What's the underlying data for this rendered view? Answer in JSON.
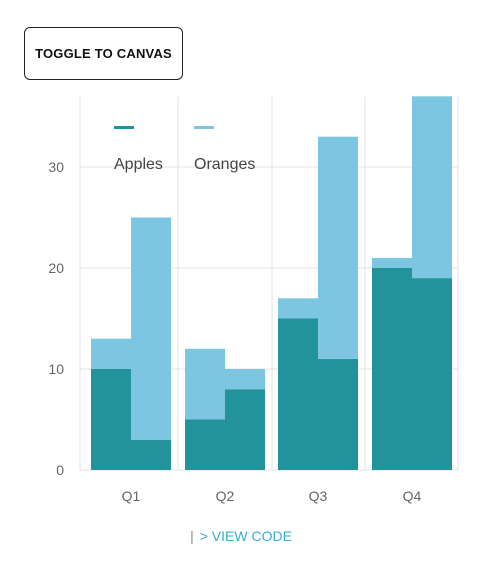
{
  "toggle_button": {
    "label": "TOGGLE TO CANVAS"
  },
  "view_code": {
    "pipe": "|",
    "label": "> VIEW CODE"
  },
  "colors": {
    "apples": "#22939a",
    "oranges": "#7dc6e2",
    "grid": "#e3e3e3",
    "axis_text": "#666666",
    "legend_text": "#444444"
  },
  "chart_data": {
    "type": "bar",
    "layout": "grouped-stacked",
    "categories": [
      "Q1",
      "Q2",
      "Q3",
      "Q4"
    ],
    "series": [
      {
        "name": "Apples",
        "color": "#22939a",
        "values": [
          [
            10,
            3
          ],
          [
            5,
            8
          ],
          [
            15,
            11
          ],
          [
            20,
            19
          ]
        ]
      },
      {
        "name": "Oranges",
        "color": "#7dc6e2",
        "values": [
          [
            3,
            22
          ],
          [
            7,
            2
          ],
          [
            2,
            22
          ],
          [
            1,
            18
          ]
        ]
      }
    ],
    "yticks": [
      0,
      10,
      20,
      30
    ],
    "ylim": [
      0,
      37
    ],
    "grid": true,
    "legend": {
      "position": "top-left",
      "items": [
        "Apples",
        "Oranges"
      ]
    }
  }
}
